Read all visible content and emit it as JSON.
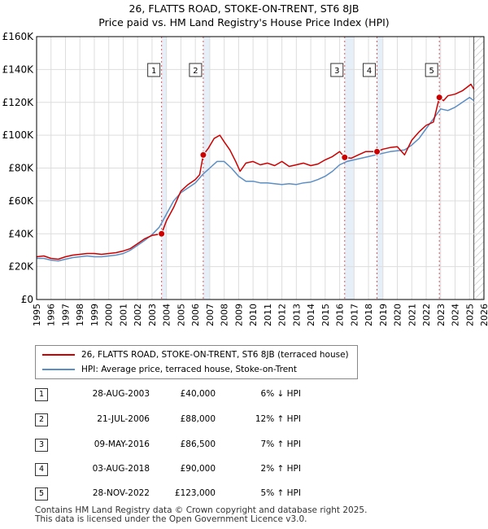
{
  "title_line1": "26, FLATTS ROAD, STOKE-ON-TRENT, ST6 8JB",
  "title_line2": "Price paid vs. HM Land Registry's House Price Index (HPI)",
  "chart_data": {
    "type": "line",
    "title": "26, FLATTS ROAD, STOKE-ON-TRENT, ST6 8JB",
    "subtitle": "Price paid vs. HM Land Registry's House Price Index (HPI)",
    "xlabel": "",
    "ylabel": "",
    "xlim": [
      1995,
      2026
    ],
    "ylim": [
      0,
      160000
    ],
    "y_ticks": [
      0,
      20000,
      40000,
      60000,
      80000,
      100000,
      120000,
      140000,
      160000
    ],
    "y_tick_labels": [
      "£0",
      "£20K",
      "£40K",
      "£60K",
      "£80K",
      "£100K",
      "£120K",
      "£140K",
      "£160K"
    ],
    "x_ticks": [
      1995,
      1996,
      1997,
      1998,
      1999,
      2000,
      2001,
      2002,
      2003,
      2004,
      2005,
      2006,
      2007,
      2008,
      2009,
      2010,
      2011,
      2012,
      2013,
      2014,
      2015,
      2016,
      2017,
      2018,
      2019,
      2020,
      2021,
      2022,
      2023,
      2024,
      2025,
      2026
    ],
    "x_tick_labels": [
      "1995",
      "1996",
      "1997",
      "1998",
      "1999",
      "2000",
      "2001",
      "2002",
      "2003",
      "2004",
      "2005",
      "2006",
      "2007",
      "2008",
      "2009",
      "2010",
      "2011",
      "2012",
      "2013",
      "2014",
      "2015",
      "2016",
      "2017",
      "2018",
      "2019",
      "2020",
      "2021",
      "2022",
      "2023",
      "2024",
      "2025",
      "2026"
    ],
    "grid": true,
    "future_hatch_from": 2025.3,
    "series": [
      {
        "name": "26, FLATTS ROAD, STOKE-ON-TRENT, ST6 8JB (terraced house)",
        "color": "#cc0000",
        "x": [
          1995.0,
          1995.5,
          1996.0,
          1996.5,
          1997.0,
          1997.5,
          1998.0,
          1998.5,
          1999.0,
          1999.5,
          2000.0,
          2000.5,
          2001.0,
          2001.5,
          2002.0,
          2002.5,
          2003.0,
          2003.66,
          2004.0,
          2004.5,
          2005.0,
          2005.5,
          2006.0,
          2006.3,
          2006.55,
          2006.9,
          2007.3,
          2007.7,
          2008.0,
          2008.4,
          2008.8,
          2009.1,
          2009.5,
          2010.0,
          2010.5,
          2011.0,
          2011.5,
          2012.0,
          2012.5,
          2013.0,
          2013.5,
          2014.0,
          2014.5,
          2015.0,
          2015.5,
          2016.0,
          2016.35,
          2016.8,
          2017.3,
          2017.8,
          2018.3,
          2018.59,
          2019.0,
          2019.5,
          2020.0,
          2020.5,
          2021.0,
          2021.5,
          2022.0,
          2022.5,
          2022.91,
          2023.2,
          2023.5,
          2024.0,
          2024.5,
          2024.8,
          2025.1,
          2025.3
        ],
        "values": [
          26000,
          26500,
          25000,
          24500,
          26000,
          27000,
          27500,
          28000,
          28000,
          27500,
          28000,
          28500,
          29500,
          31000,
          34000,
          37000,
          39000,
          40000,
          48000,
          56000,
          66000,
          70000,
          73000,
          76000,
          88000,
          92000,
          98000,
          100000,
          96000,
          91000,
          84000,
          78000,
          83000,
          84000,
          82000,
          83000,
          81500,
          84000,
          81000,
          82000,
          83000,
          81500,
          82500,
          85000,
          87000,
          90000,
          86500,
          86000,
          88000,
          90000,
          90000,
          90000,
          91500,
          92500,
          93000,
          88000,
          97000,
          102000,
          106000,
          108000,
          123000,
          121000,
          124000,
          125000,
          127000,
          129000,
          131000,
          128000
        ]
      },
      {
        "name": "HPI: Average price, terraced house, Stoke-on-Trent",
        "color": "#5b8ec4",
        "x": [
          1995.0,
          1995.5,
          1996.0,
          1996.5,
          1997.0,
          1997.5,
          1998.0,
          1998.5,
          1999.0,
          1999.5,
          2000.0,
          2000.5,
          2001.0,
          2001.5,
          2002.0,
          2002.5,
          2003.0,
          2003.5,
          2004.0,
          2004.5,
          2005.0,
          2005.5,
          2006.0,
          2006.5,
          2007.0,
          2007.5,
          2008.0,
          2008.5,
          2009.0,
          2009.5,
          2010.0,
          2010.5,
          2011.0,
          2011.5,
          2012.0,
          2012.5,
          2013.0,
          2013.5,
          2014.0,
          2014.5,
          2015.0,
          2015.5,
          2016.0,
          2016.5,
          2017.0,
          2017.5,
          2018.0,
          2018.5,
          2019.0,
          2019.5,
          2020.0,
          2020.5,
          2021.0,
          2021.5,
          2022.0,
          2022.5,
          2023.0,
          2023.5,
          2024.0,
          2024.5,
          2025.0,
          2025.3
        ],
        "values": [
          25000,
          25000,
          24000,
          23500,
          24500,
          25500,
          26000,
          26500,
          26000,
          26000,
          26500,
          27000,
          28000,
          30000,
          33000,
          36000,
          39500,
          44000,
          52000,
          60000,
          65000,
          68000,
          71000,
          76000,
          80000,
          84000,
          84000,
          80000,
          75000,
          72000,
          72000,
          71000,
          71000,
          70500,
          70000,
          70500,
          70000,
          71000,
          71500,
          73000,
          75000,
          78000,
          82000,
          84000,
          85000,
          86000,
          87000,
          88000,
          89000,
          90000,
          90500,
          91000,
          94000,
          98000,
          104000,
          110000,
          116000,
          115000,
          117000,
          120000,
          123000,
          121000
        ]
      }
    ],
    "transactions": [
      {
        "label": "1",
        "date": "28-AUG-2003",
        "price": "£40,000",
        "hpi": "6% ↓ HPI",
        "x": 2003.66,
        "y": 40000
      },
      {
        "label": "2",
        "date": "21-JUL-2006",
        "price": "£88,000",
        "hpi": "12% ↑ HPI",
        "x": 2006.55,
        "y": 88000
      },
      {
        "label": "3",
        "date": "09-MAY-2016",
        "price": "£86,500",
        "hpi": "7% ↑ HPI",
        "x": 2016.35,
        "y": 86500
      },
      {
        "label": "4",
        "date": "03-AUG-2018",
        "price": "£90,000",
        "hpi": "2% ↑ HPI",
        "x": 2018.59,
        "y": 90000
      },
      {
        "label": "5",
        "date": "28-NOV-2022",
        "price": "£123,000",
        "hpi": "5% ↑ HPI",
        "x": 2022.91,
        "y": 123000
      }
    ]
  },
  "legend": {
    "red_label": "26, FLATTS ROAD, STOKE-ON-TRENT, ST6 8JB (terraced house)",
    "blue_label": "HPI: Average price, terraced house, Stoke-on-Trent",
    "red_color": "#cc0000",
    "blue_color": "#5b8ec4"
  },
  "footer": {
    "line1": "Contains HM Land Registry data © Crown copyright and database right 2025.",
    "line2": "This data is licensed under the Open Government Licence v3.0."
  }
}
